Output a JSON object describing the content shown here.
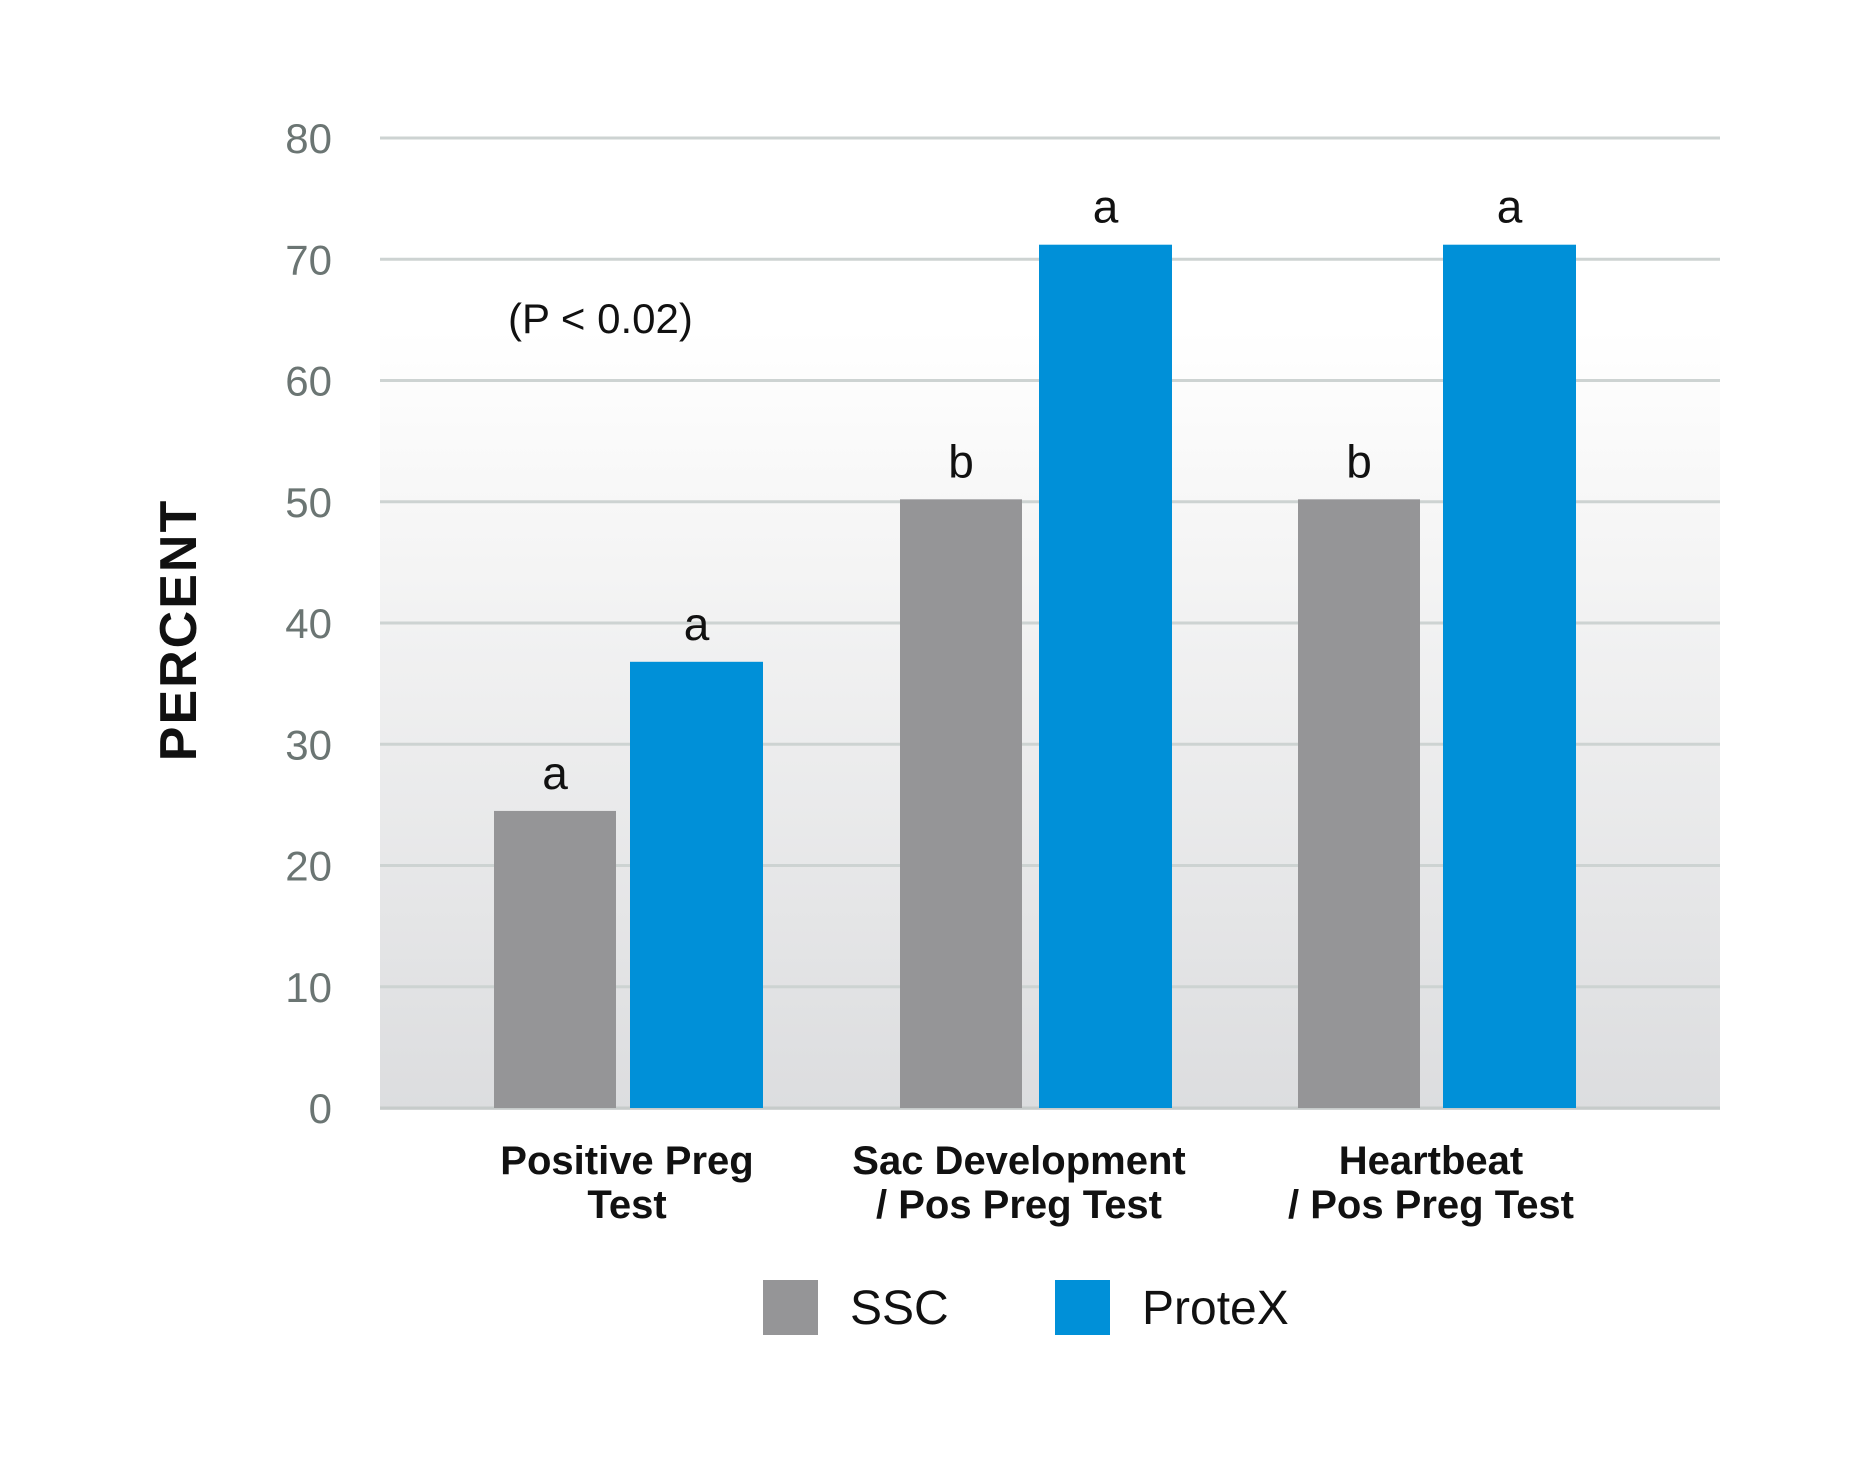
{
  "chart_data": {
    "type": "bar",
    "categories": [
      [
        "Positive Preg",
        "Test"
      ],
      [
        "Sac Development",
        "/ Pos Preg Test"
      ],
      [
        "Heartbeat",
        "/ Pos Preg Test"
      ]
    ],
    "series": [
      {
        "name": "SSC",
        "color": "#959597",
        "values": [
          24.5,
          50.2,
          50.2
        ],
        "sig": [
          "a",
          "b",
          "b"
        ]
      },
      {
        "name": "ProteX",
        "color": "#0090d8",
        "values": [
          36.8,
          71.2,
          71.2
        ],
        "sig": [
          "a",
          "a",
          "a"
        ]
      }
    ],
    "ylabel": "PERCENT",
    "xlabel": "",
    "ylim": [
      0,
      80
    ],
    "yticks": [
      0,
      10,
      20,
      30,
      40,
      50,
      60,
      70,
      80
    ],
    "annotation": "(P < 0.02)",
    "grid": true,
    "legend_position": "bottom-center"
  }
}
